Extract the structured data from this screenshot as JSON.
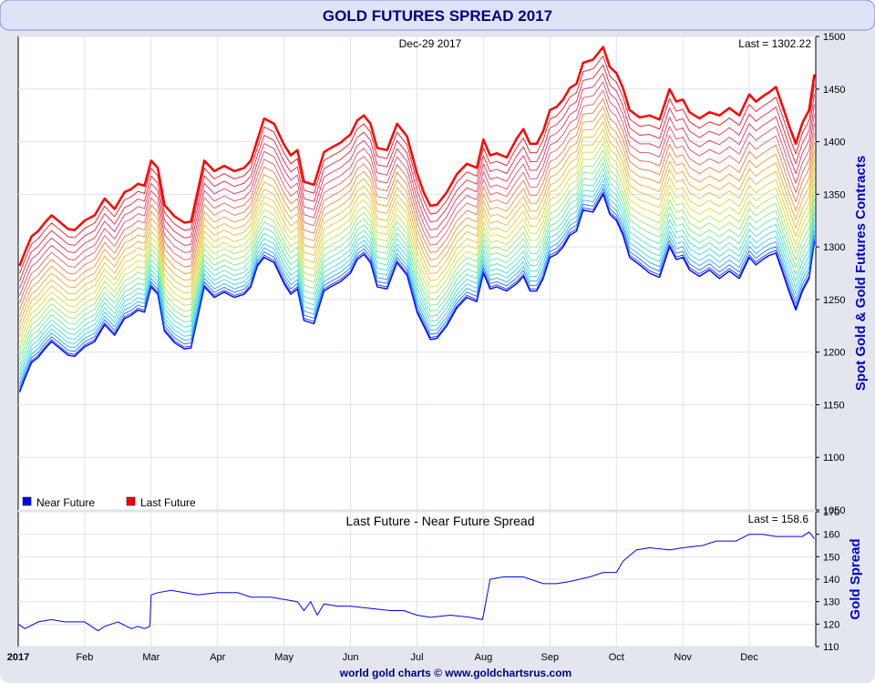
{
  "title": "GOLD FUTURES SPREAD 2017",
  "footer": "world gold charts © www.goldchartsrus.com",
  "colors": {
    "frame_bg": "#e3e6ee",
    "title_bg": "#dfe3f7",
    "title_text": "#000080",
    "near_future": "#0000ff",
    "last_future": "#ff0000",
    "spread_line": "#0000ff",
    "axis_label": "#0000cc",
    "grid": "#dde3ef"
  },
  "chart_data": [
    {
      "type": "line",
      "date_label": "Dec-29  2017",
      "last_label": "Last = 1302.22",
      "ylabel": "Spot Gold & Gold Futures Contracts",
      "ylim": [
        1050,
        1500
      ],
      "yticks": [
        "1050",
        "1100",
        "1150",
        "1200",
        "1250",
        "1300",
        "1350",
        "1400",
        "1450",
        "1500"
      ],
      "grid": true,
      "legend_position": "bottom-left",
      "legend": [
        {
          "label": "Near Future",
          "color": "#0000ff"
        },
        {
          "label": "Last Future",
          "color": "#ff0000"
        }
      ],
      "contract_count": 23,
      "months": [
        "2017",
        "Feb",
        "Mar",
        "Apr",
        "May",
        "Jun",
        "Jul",
        "Aug",
        "Sep",
        "Oct",
        "Nov",
        "Dec"
      ],
      "x_domain": [
        0,
        12
      ],
      "series": [
        {
          "name": "Near Future",
          "x": [
            0.02,
            0.1,
            0.2,
            0.3,
            0.4,
            0.5,
            0.6,
            0.75,
            0.85,
            1.0,
            1.15,
            1.3,
            1.45,
            1.6,
            1.7,
            1.8,
            1.9,
            2.0,
            2.1,
            2.2,
            2.35,
            2.5,
            2.6,
            2.8,
            2.95,
            3.1,
            3.25,
            3.4,
            3.5,
            3.6,
            3.7,
            3.85,
            4.0,
            4.1,
            4.2,
            4.3,
            4.45,
            4.6,
            4.7,
            4.85,
            5.0,
            5.1,
            5.2,
            5.3,
            5.4,
            5.55,
            5.7,
            5.85,
            6.0,
            6.1,
            6.2,
            6.3,
            6.45,
            6.6,
            6.75,
            6.9,
            7.0,
            7.1,
            7.2,
            7.35,
            7.5,
            7.6,
            7.7,
            7.8,
            7.9,
            8.0,
            8.1,
            8.2,
            8.3,
            8.4,
            8.5,
            8.65,
            8.8,
            8.9,
            9.0,
            9.1,
            9.2,
            9.35,
            9.5,
            9.65,
            9.8,
            9.9,
            10.0,
            10.1,
            10.25,
            10.4,
            10.55,
            10.7,
            10.85,
            11.0,
            11.1,
            11.2,
            11.3,
            11.4,
            11.5,
            11.6,
            11.7,
            11.8,
            11.9,
            11.98
          ],
          "values": [
            1162,
            1175,
            1190,
            1195,
            1203,
            1210,
            1205,
            1197,
            1196,
            1205,
            1210,
            1226,
            1216,
            1232,
            1235,
            1240,
            1238,
            1262,
            1255,
            1220,
            1209,
            1203,
            1204,
            1262,
            1252,
            1257,
            1252,
            1255,
            1262,
            1282,
            1290,
            1285,
            1265,
            1255,
            1260,
            1230,
            1227,
            1258,
            1262,
            1267,
            1275,
            1288,
            1293,
            1285,
            1262,
            1260,
            1285,
            1273,
            1238,
            1225,
            1212,
            1213,
            1225,
            1242,
            1252,
            1248,
            1275,
            1260,
            1262,
            1258,
            1265,
            1272,
            1258,
            1258,
            1270,
            1290,
            1293,
            1300,
            1311,
            1315,
            1335,
            1333,
            1350,
            1331,
            1325,
            1311,
            1290,
            1283,
            1275,
            1271,
            1300,
            1288,
            1290,
            1278,
            1272,
            1278,
            1270,
            1277,
            1270,
            1290,
            1283,
            1288,
            1292,
            1294,
            1276,
            1257,
            1240,
            1258,
            1270,
            1305
          ]
        },
        {
          "name": "Last Future",
          "x": [
            0.02,
            0.1,
            0.2,
            0.3,
            0.4,
            0.5,
            0.6,
            0.75,
            0.85,
            1.0,
            1.15,
            1.3,
            1.45,
            1.6,
            1.7,
            1.8,
            1.9,
            2.0,
            2.1,
            2.2,
            2.35,
            2.5,
            2.6,
            2.8,
            2.95,
            3.1,
            3.25,
            3.4,
            3.5,
            3.6,
            3.7,
            3.85,
            4.0,
            4.1,
            4.2,
            4.3,
            4.45,
            4.6,
            4.7,
            4.85,
            5.0,
            5.1,
            5.2,
            5.3,
            5.4,
            5.55,
            5.7,
            5.85,
            6.0,
            6.1,
            6.2,
            6.3,
            6.45,
            6.6,
            6.75,
            6.9,
            7.0,
            7.1,
            7.2,
            7.35,
            7.5,
            7.6,
            7.7,
            7.8,
            7.9,
            8.0,
            8.1,
            8.2,
            8.3,
            8.4,
            8.5,
            8.65,
            8.8,
            8.9,
            9.0,
            9.1,
            9.2,
            9.35,
            9.5,
            9.65,
            9.8,
            9.9,
            10.0,
            10.1,
            10.25,
            10.4,
            10.55,
            10.7,
            10.85,
            11.0,
            11.1,
            11.2,
            11.3,
            11.4,
            11.5,
            11.6,
            11.7,
            11.8,
            11.9,
            11.98
          ],
          "values": [
            1282,
            1295,
            1310,
            1315,
            1323,
            1330,
            1325,
            1317,
            1316,
            1325,
            1330,
            1346,
            1336,
            1352,
            1355,
            1360,
            1358,
            1382,
            1375,
            1340,
            1329,
            1323,
            1324,
            1382,
            1372,
            1377,
            1372,
            1375,
            1382,
            1402,
            1422,
            1417,
            1397,
            1387,
            1392,
            1362,
            1359,
            1390,
            1394,
            1399,
            1407,
            1420,
            1425,
            1417,
            1394,
            1392,
            1417,
            1405,
            1370,
            1352,
            1339,
            1340,
            1352,
            1369,
            1379,
            1375,
            1402,
            1387,
            1389,
            1385,
            1403,
            1412,
            1398,
            1398,
            1410,
            1430,
            1433,
            1440,
            1451,
            1455,
            1475,
            1478,
            1490,
            1471,
            1465,
            1451,
            1430,
            1423,
            1425,
            1421,
            1450,
            1438,
            1440,
            1428,
            1422,
            1428,
            1425,
            1432,
            1425,
            1445,
            1438,
            1443,
            1447,
            1452,
            1434,
            1415,
            1398,
            1418,
            1430,
            1464
          ]
        }
      ]
    },
    {
      "type": "line",
      "title": "Last Future - Near Future Spread",
      "last_label": "Last = 158.6",
      "ylabel": "Gold Spread",
      "ylim": [
        110,
        170
      ],
      "yticks": [
        "110",
        "120",
        "130",
        "140",
        "150",
        "160",
        "170"
      ],
      "grid": true,
      "months": [
        "2017",
        "Feb",
        "Mar",
        "Apr",
        "May",
        "Jun",
        "Jul",
        "Aug",
        "Sep",
        "Oct",
        "Nov",
        "Dec"
      ],
      "x_domain": [
        0,
        12
      ],
      "series": [
        {
          "name": "Last Future - Near Future Spread",
          "x": [
            0.0,
            0.1,
            0.3,
            0.5,
            0.7,
            1.0,
            1.2,
            1.3,
            1.5,
            1.7,
            1.8,
            1.9,
            1.98,
            2.0,
            2.1,
            2.3,
            2.5,
            2.7,
            3.0,
            3.3,
            3.5,
            3.8,
            4.0,
            4.2,
            4.3,
            4.4,
            4.5,
            4.6,
            4.8,
            5.0,
            5.3,
            5.6,
            5.8,
            6.0,
            6.2,
            6.5,
            6.8,
            6.98,
            7.0,
            7.1,
            7.3,
            7.6,
            7.9,
            8.1,
            8.3,
            8.6,
            8.8,
            9.0,
            9.1,
            9.3,
            9.5,
            9.8,
            10.0,
            10.3,
            10.5,
            10.8,
            11.0,
            11.2,
            11.4,
            11.6,
            11.8,
            11.9,
            11.98
          ],
          "values": [
            120,
            118,
            121,
            122,
            121,
            121,
            117,
            119,
            121,
            118,
            119,
            118,
            119,
            133,
            134,
            135,
            134,
            133,
            134,
            134,
            132,
            132,
            131,
            130,
            126,
            130,
            124,
            129,
            128,
            128,
            127,
            126,
            126,
            124,
            123,
            124,
            123,
            122,
            124,
            140,
            141,
            141,
            138,
            138,
            139,
            141,
            143,
            143,
            148,
            153,
            154,
            153,
            154,
            155,
            157,
            157,
            160,
            160,
            159,
            159,
            159,
            161,
            158
          ]
        }
      ]
    }
  ]
}
